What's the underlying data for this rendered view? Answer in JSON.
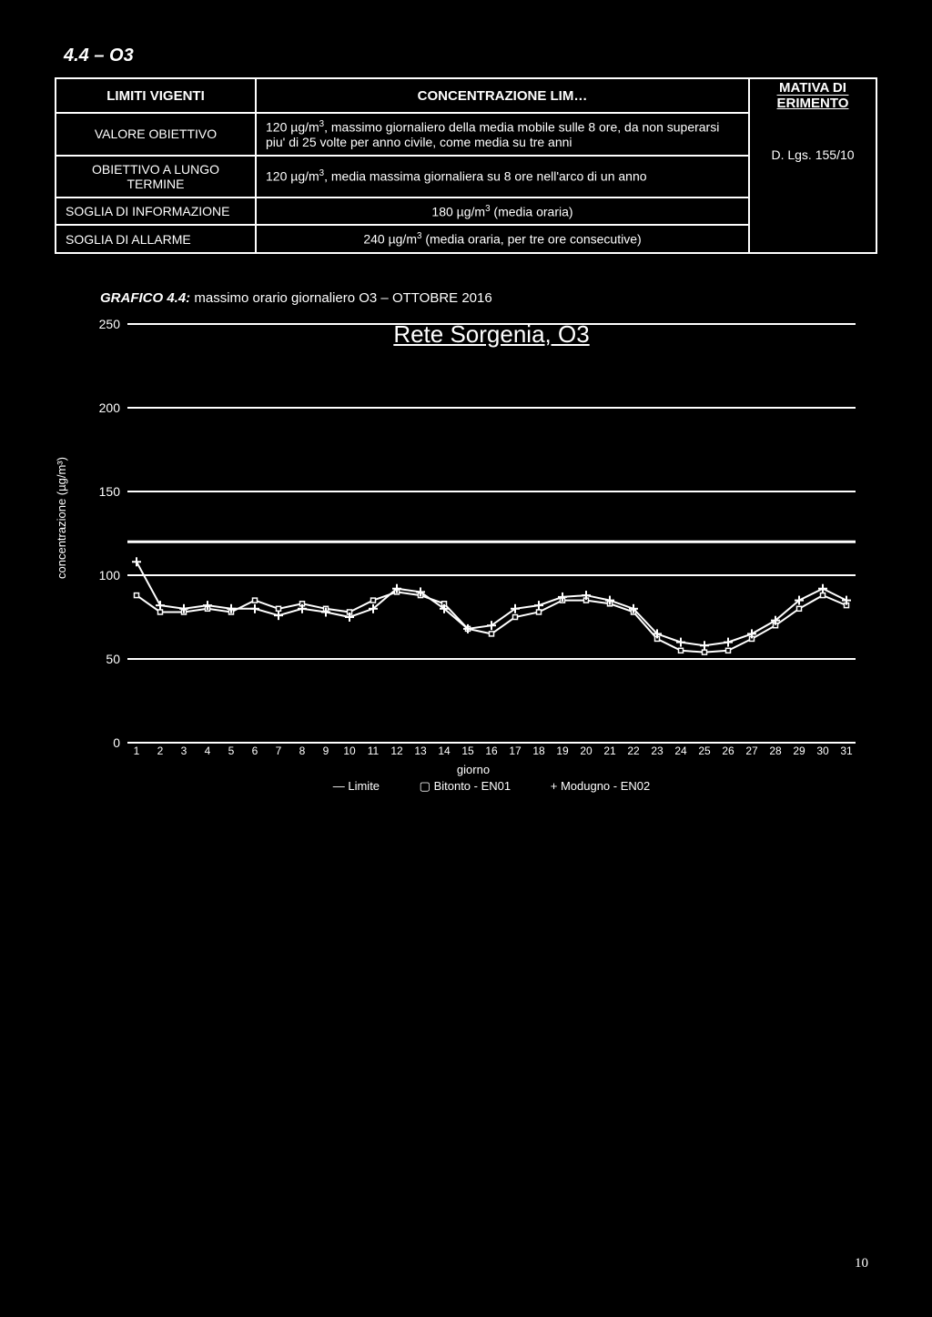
{
  "section_heading": "4.4 – O3",
  "table": {
    "headers": {
      "limiti": "LIMITI VIGENTI",
      "conc": "CONCENTRAZIONE LIM…",
      "norm_top": "MATIVA DI",
      "norm_top2": "ERIMENTO"
    },
    "rows": [
      {
        "label": "VALORE OBIETTIVO",
        "value_html": "120 µg/m³, massimo giornaliero della media mobile sulle 8 ore, da non superarsi piu' di 25 volte per anno civile, come media su tre anni"
      },
      {
        "label": "OBIETTIVO A LUNGO TERMINE",
        "value_html": "120 µg/m³, media massima giornaliera su 8 ore nell'arco di un anno"
      },
      {
        "label": "SOGLIA DI INFORMAZIONE",
        "value_html": "180 µg/m³ (media oraria)"
      },
      {
        "label": "SOGLIA DI ALLARME",
        "value_html": "240 µg/m³ (media oraria, per tre ore consecutive)"
      }
    ],
    "norm_value": "D. Lgs. 155/10"
  },
  "chart_heading_bold": "GRAFICO 4.4:",
  "chart_heading_rest": " massimo orario giornaliero O3 – OTTOBRE 2016",
  "chart": {
    "title": "Rete Sorgenia, O3",
    "ylabel": "concentrazione (µg/m³)",
    "xlabel": "giorno",
    "ylim": [
      0,
      250
    ],
    "ytick_step": 50,
    "yticks": [
      0,
      50,
      100,
      150,
      200,
      250
    ],
    "days": [
      1,
      2,
      3,
      4,
      5,
      6,
      7,
      8,
      9,
      10,
      11,
      12,
      13,
      14,
      15,
      16,
      17,
      18,
      19,
      20,
      21,
      22,
      23,
      24,
      25,
      26,
      27,
      28,
      29,
      30,
      31
    ],
    "limite": 120,
    "bitonto": [
      88,
      78,
      78,
      80,
      78,
      85,
      80,
      83,
      80,
      78,
      85,
      90,
      88,
      83,
      68,
      65,
      75,
      78,
      85,
      85,
      83,
      78,
      62,
      55,
      54,
      55,
      62,
      70,
      80,
      88,
      82
    ],
    "modugno": [
      108,
      82,
      80,
      82,
      80,
      80,
      76,
      80,
      78,
      75,
      80,
      92,
      90,
      80,
      68,
      70,
      80,
      82,
      87,
      88,
      85,
      80,
      65,
      60,
      58,
      60,
      65,
      73,
      85,
      92,
      85
    ],
    "colors": {
      "line": "#ffffff",
      "background": "#000000",
      "grid": "#ffffff"
    },
    "line_width": 2,
    "marker_size": 5
  },
  "legend": {
    "limite": "— Limite",
    "bitonto": "▢ Bitonto - EN01",
    "modugno": "+ Modugno - EN02"
  },
  "page_number": "10"
}
